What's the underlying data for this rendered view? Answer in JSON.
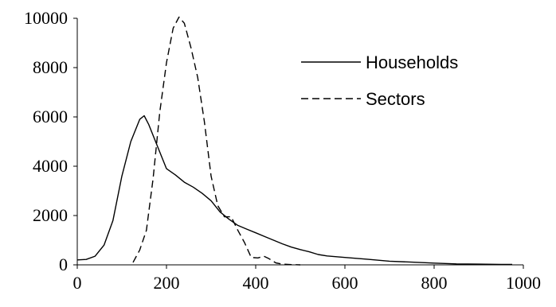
{
  "chart_data": {
    "type": "line",
    "title": "",
    "xlabel": "",
    "ylabel": "",
    "xlim": [
      0,
      1000
    ],
    "ylim": [
      0,
      10000
    ],
    "xticks": [
      0,
      200,
      400,
      600,
      800,
      1000
    ],
    "yticks": [
      0,
      2000,
      4000,
      6000,
      8000,
      10000
    ],
    "grid": false,
    "legend_position": "top-right",
    "series": [
      {
        "name": "Households",
        "style": "solid",
        "color": "#000000",
        "points": [
          [
            0,
            200
          ],
          [
            20,
            220
          ],
          [
            40,
            350
          ],
          [
            60,
            800
          ],
          [
            80,
            1800
          ],
          [
            100,
            3600
          ],
          [
            120,
            5000
          ],
          [
            140,
            5900
          ],
          [
            150,
            6050
          ],
          [
            160,
            5700
          ],
          [
            180,
            4800
          ],
          [
            200,
            3900
          ],
          [
            220,
            3650
          ],
          [
            240,
            3350
          ],
          [
            260,
            3150
          ],
          [
            280,
            2900
          ],
          [
            300,
            2600
          ],
          [
            320,
            2150
          ],
          [
            340,
            1850
          ],
          [
            360,
            1600
          ],
          [
            380,
            1450
          ],
          [
            400,
            1300
          ],
          [
            420,
            1150
          ],
          [
            440,
            1000
          ],
          [
            460,
            850
          ],
          [
            480,
            720
          ],
          [
            500,
            620
          ],
          [
            520,
            530
          ],
          [
            540,
            420
          ],
          [
            560,
            360
          ],
          [
            600,
            300
          ],
          [
            650,
            230
          ],
          [
            700,
            150
          ],
          [
            750,
            110
          ],
          [
            800,
            70
          ],
          [
            850,
            40
          ],
          [
            900,
            30
          ],
          [
            950,
            20
          ],
          [
            975,
            20
          ]
        ]
      },
      {
        "name": "Sectors",
        "style": "dashed",
        "color": "#000000",
        "points": [
          [
            125,
            100
          ],
          [
            140,
            600
          ],
          [
            155,
            1400
          ],
          [
            170,
            3500
          ],
          [
            185,
            6200
          ],
          [
            200,
            8200
          ],
          [
            215,
            9600
          ],
          [
            228,
            10050
          ],
          [
            240,
            9800
          ],
          [
            255,
            8800
          ],
          [
            270,
            7600
          ],
          [
            285,
            5800
          ],
          [
            300,
            3600
          ],
          [
            315,
            2400
          ],
          [
            330,
            1950
          ],
          [
            345,
            1950
          ],
          [
            360,
            1400
          ],
          [
            375,
            900
          ],
          [
            390,
            300
          ],
          [
            405,
            280
          ],
          [
            418,
            350
          ],
          [
            430,
            250
          ],
          [
            445,
            80
          ],
          [
            460,
            30
          ],
          [
            480,
            10
          ],
          [
            500,
            0
          ]
        ]
      }
    ]
  }
}
